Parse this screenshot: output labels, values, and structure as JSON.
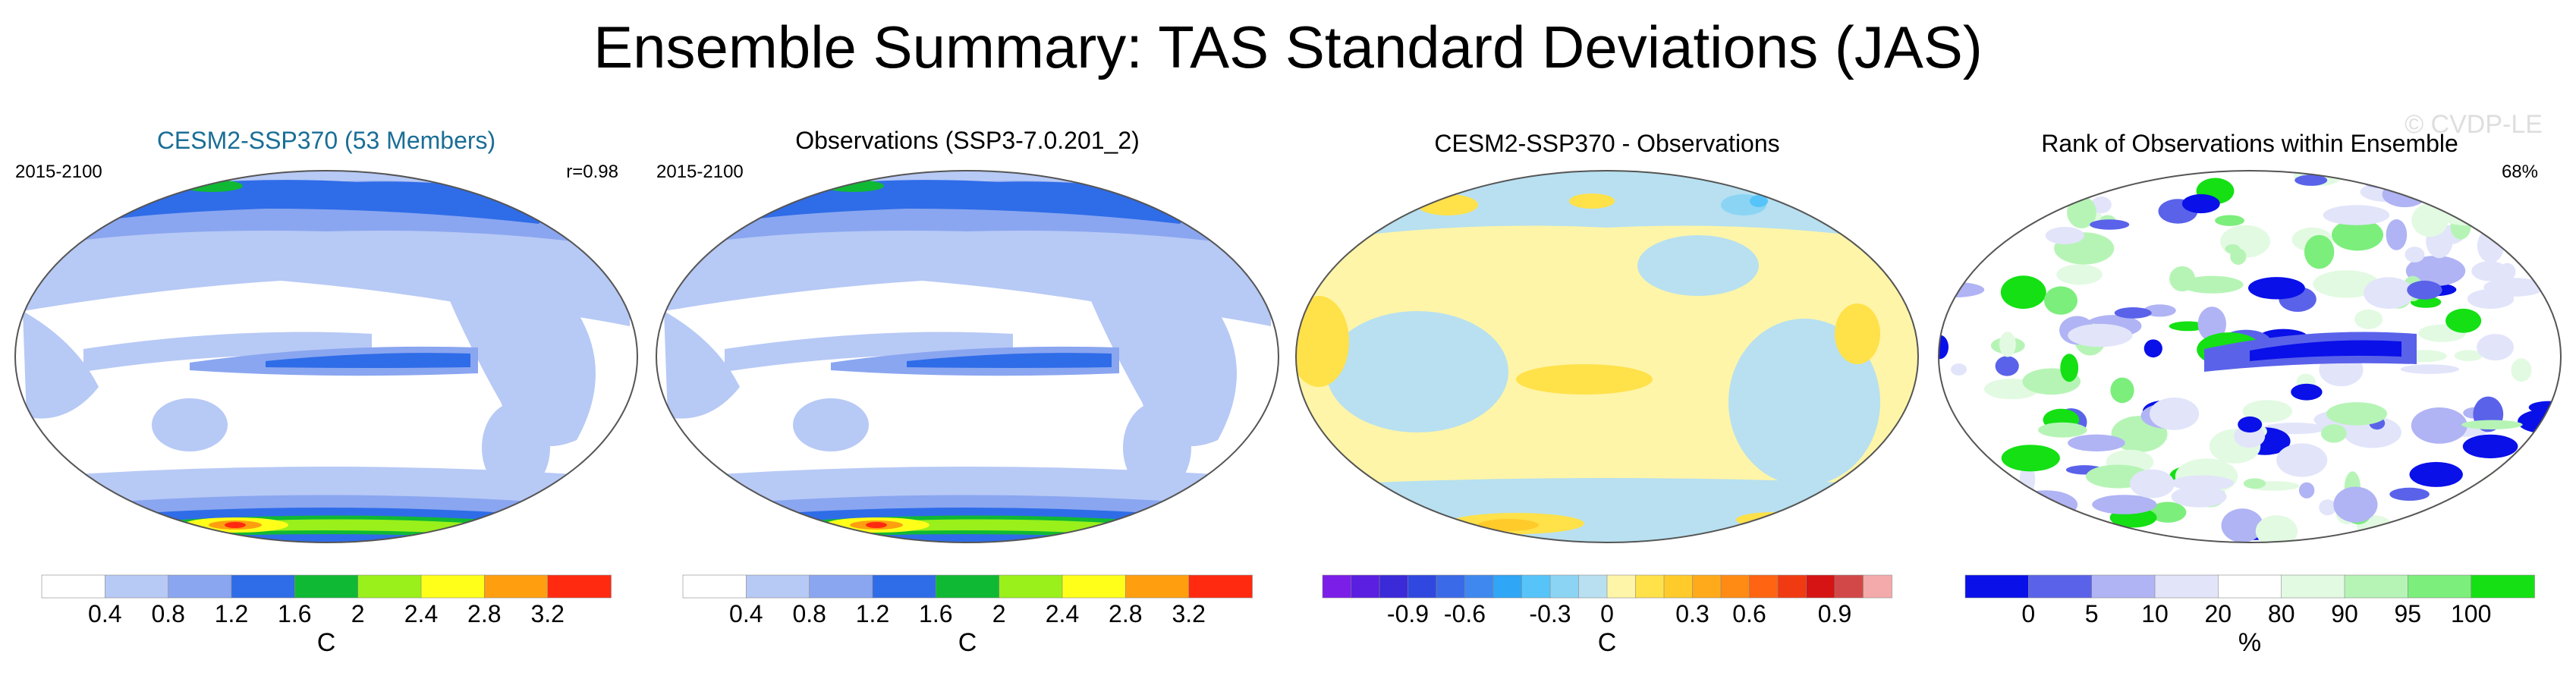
{
  "title": "Ensemble Summary: TAS Standard Deviations (JAS)",
  "watermark": "© CVDP-LE",
  "chart_data": [
    {
      "type": "heatmap",
      "title": "CESM2-SSP370 (53 Members)",
      "title_color": "#1a6e96",
      "period": "2015-2100",
      "stat": "r=0.98",
      "field": "TAS standard deviation",
      "colorbar_label": "C",
      "colorbar_ticks": [
        "0.4",
        "0.8",
        "1.2",
        "1.6",
        "2",
        "2.4",
        "2.8",
        "3.2"
      ],
      "colorbar_bins": 9,
      "colorbar_colors": [
        "#ffffff",
        "#b7c9f5",
        "#8aa6f0",
        "#2f6ce8",
        "#10b933",
        "#9af01a",
        "#ffff1a",
        "#ff9f10",
        "#ff2a10"
      ],
      "map_style": "std"
    },
    {
      "type": "heatmap",
      "title": "Observations (SSP3-7.0.201_2)",
      "title_color": "#000000",
      "period": "2015-2100",
      "stat": "",
      "field": "TAS standard deviation",
      "colorbar_label": "C",
      "colorbar_ticks": [
        "0.4",
        "0.8",
        "1.2",
        "1.6",
        "2",
        "2.4",
        "2.8",
        "3.2"
      ],
      "colorbar_bins": 9,
      "colorbar_colors": [
        "#ffffff",
        "#b7c9f5",
        "#8aa6f0",
        "#2f6ce8",
        "#10b933",
        "#9af01a",
        "#ffff1a",
        "#ff9f10",
        "#ff2a10"
      ],
      "map_style": "std"
    },
    {
      "type": "heatmap",
      "title": "CESM2-SSP370 - Observations",
      "title_color": "#000000",
      "period": "",
      "stat": "",
      "field": "TAS standard deviation difference",
      "colorbar_label": "C",
      "colorbar_ticks": [
        "-0.9",
        "-0.6",
        "-0.3",
        "0",
        "0.3",
        "0.6",
        "0.9"
      ],
      "colorbar_bins": 20,
      "colorbar_colors": [
        "#7a1ee8",
        "#5a1fe0",
        "#3a2ad8",
        "#3048e0",
        "#3a6ae8",
        "#3f88f0",
        "#2fa6f6",
        "#56c4f8",
        "#8cd4f4",
        "#b8e0f0",
        "#fff5a8",
        "#ffe14a",
        "#ffcb2a",
        "#ffaa1a",
        "#ff8a14",
        "#ff6412",
        "#f03a12",
        "#d61414",
        "#d24848",
        "#f4aaaa"
      ],
      "map_style": "diff"
    },
    {
      "type": "heatmap",
      "title": "Rank of Observations within Ensemble",
      "title_color": "#000000",
      "period": "",
      "stat": "68%",
      "field": "Rank of observations",
      "colorbar_label": "%",
      "colorbar_ticks": [
        "0",
        "5",
        "10",
        "20",
        "80",
        "90",
        "95",
        "100"
      ],
      "colorbar_bins": 9,
      "colorbar_colors": [
        "#0a10e8",
        "#5a62ea",
        "#b0b4f4",
        "#e2e4fa",
        "#ffffff",
        "#e2fae2",
        "#b6f4b6",
        "#7cee7c",
        "#14e014"
      ],
      "map_style": "rank"
    }
  ]
}
